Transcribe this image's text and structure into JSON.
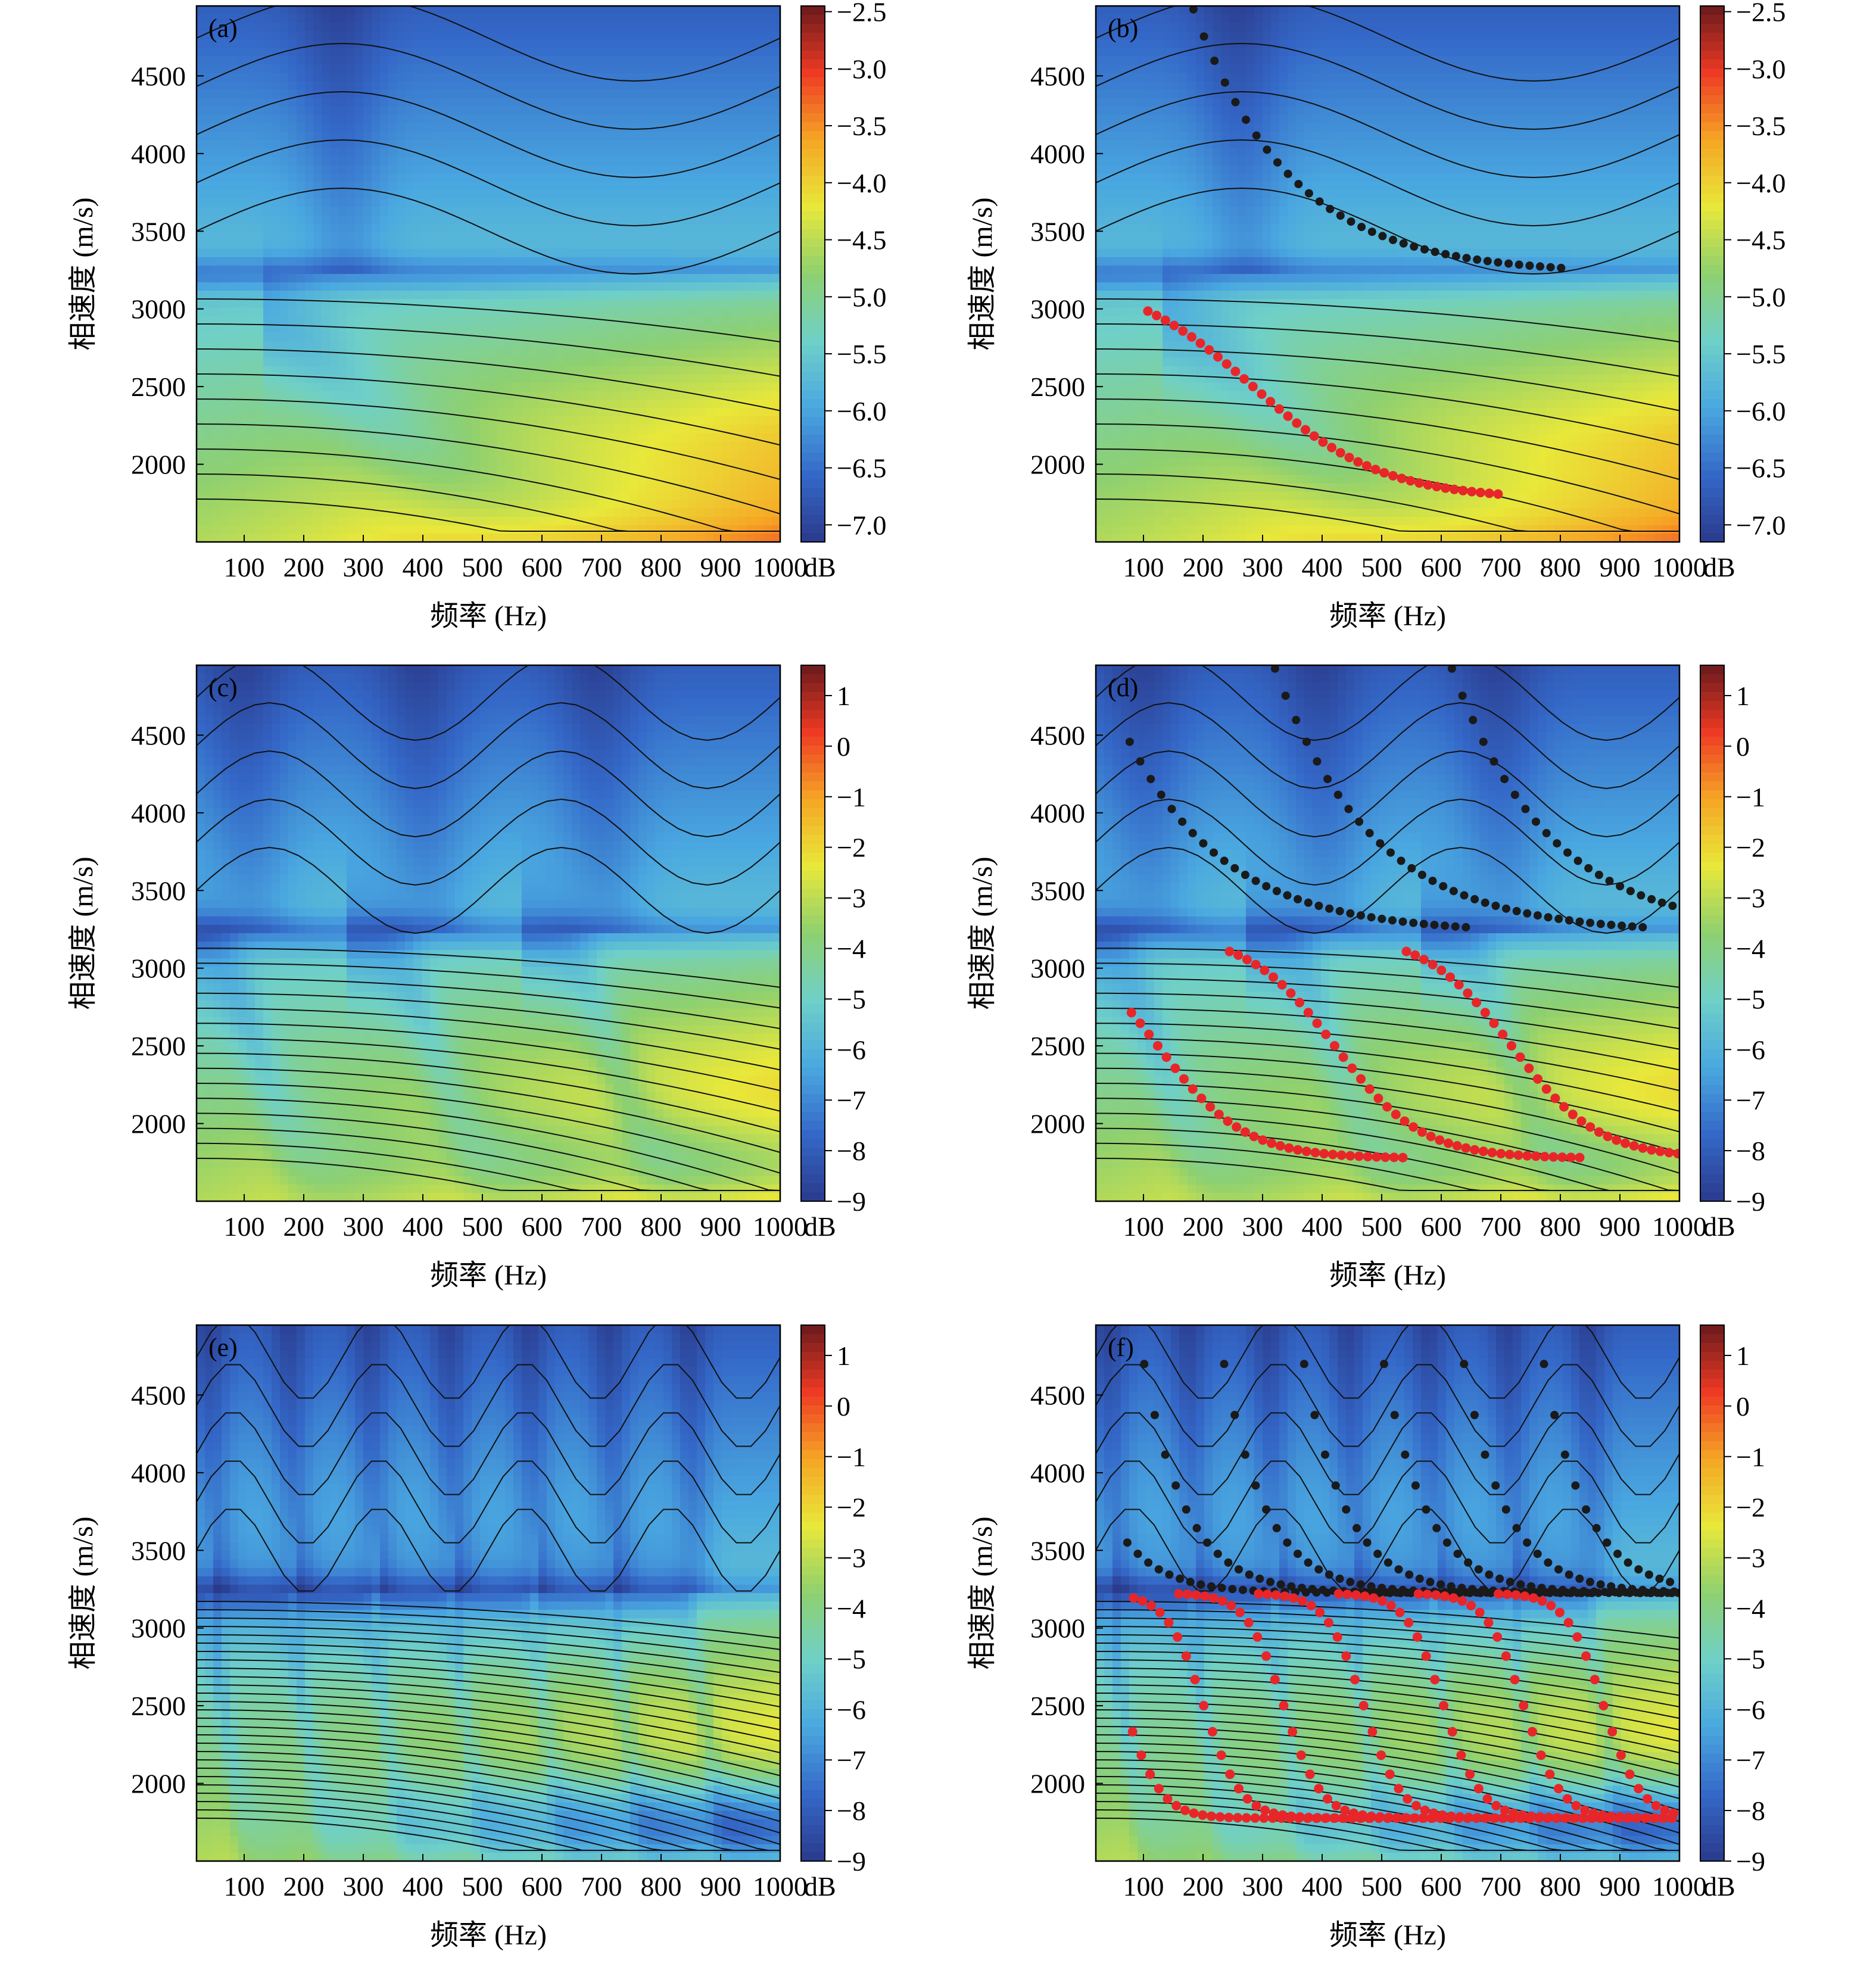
{
  "figure": {
    "panel_labels": [
      "(a)",
      "(b)",
      "(c)",
      "(d)",
      "(e)",
      "(f)"
    ],
    "xlabel": "频率 (Hz)",
    "ylabel": "相速度 (m/s)",
    "colorbar_unit": "dB",
    "colormap": [
      "#2a3a8c",
      "#3468c8",
      "#4aa8e0",
      "#6fd0c8",
      "#8ed070",
      "#e8e83a",
      "#f6a625",
      "#ee3a24",
      "#6a1a1c"
    ],
    "dispersion_colors": {
      "black_curve": "#1a1a1a",
      "red_curve": "#e8262a"
    }
  },
  "chart_data": [
    {
      "panel": "(a)",
      "type": "heatmap",
      "xlim": [
        20,
        1000
      ],
      "ylim": [
        1500,
        4950
      ],
      "xticks": [
        100,
        200,
        300,
        400,
        500,
        600,
        700,
        800,
        900,
        1000
      ],
      "yticks": [
        2000,
        2500,
        3000,
        3500,
        4000,
        4500
      ],
      "colorbar": {
        "min": -7.15,
        "max": -2.45,
        "ticks": [
          -2.5,
          -3.0,
          -3.5,
          -4.0,
          -4.5,
          -5.0,
          -5.5,
          -6.0,
          -6.5,
          -7.0
        ],
        "label": "dB"
      },
      "modes": 1,
      "dispersion_points": false
    },
    {
      "panel": "(b)",
      "type": "heatmap",
      "xlim": [
        20,
        1000
      ],
      "ylim": [
        1500,
        4950
      ],
      "xticks": [
        100,
        200,
        300,
        400,
        500,
        600,
        700,
        800,
        900,
        1000
      ],
      "yticks": [
        2000,
        2500,
        3000,
        3500,
        4000,
        4500
      ],
      "colorbar": {
        "min": -7.15,
        "max": -2.45,
        "ticks": [
          -2.5,
          -3.0,
          -3.5,
          -4.0,
          -4.5,
          -5.0,
          -5.5,
          -6.0,
          -6.5,
          -7.0
        ],
        "label": "dB"
      },
      "modes": 1,
      "dispersion_points": true
    },
    {
      "panel": "(c)",
      "type": "heatmap",
      "xlim": [
        20,
        1000
      ],
      "ylim": [
        1500,
        4950
      ],
      "xticks": [
        100,
        200,
        300,
        400,
        500,
        600,
        700,
        800,
        900,
        1000
      ],
      "yticks": [
        2000,
        2500,
        3000,
        3500,
        4000,
        4500
      ],
      "colorbar": {
        "min": -9,
        "max": 1.6,
        "ticks": [
          1,
          0,
          -1,
          -2,
          -3,
          -4,
          -5,
          -6,
          -7,
          -8,
          -9
        ],
        "label": "dB"
      },
      "modes": 3,
      "dispersion_points": false
    },
    {
      "panel": "(d)",
      "type": "heatmap",
      "xlim": [
        20,
        1000
      ],
      "ylim": [
        1500,
        4950
      ],
      "xticks": [
        100,
        200,
        300,
        400,
        500,
        600,
        700,
        800,
        900,
        1000
      ],
      "yticks": [
        2000,
        2500,
        3000,
        3500,
        4000,
        4500
      ],
      "colorbar": {
        "min": -9,
        "max": 1.6,
        "ticks": [
          1,
          0,
          -1,
          -2,
          -3,
          -4,
          -5,
          -6,
          -7,
          -8,
          -9
        ],
        "label": "dB"
      },
      "modes": 3,
      "dispersion_points": true
    },
    {
      "panel": "(e)",
      "type": "heatmap",
      "xlim": [
        20,
        1000
      ],
      "ylim": [
        1500,
        4950
      ],
      "xticks": [
        100,
        200,
        300,
        400,
        500,
        600,
        700,
        800,
        900,
        1000
      ],
      "yticks": [
        2000,
        2500,
        3000,
        3500,
        4000,
        4500
      ],
      "colorbar": {
        "min": -9,
        "max": 1.6,
        "ticks": [
          1,
          0,
          -1,
          -2,
          -3,
          -4,
          -5,
          -6,
          -7,
          -8,
          -9
        ],
        "label": "dB"
      },
      "modes": 7,
      "dispersion_points": false
    },
    {
      "panel": "(f)",
      "type": "heatmap",
      "xlim": [
        20,
        1000
      ],
      "ylim": [
        1500,
        4950
      ],
      "xticks": [
        100,
        200,
        300,
        400,
        500,
        600,
        700,
        800,
        900,
        1000
      ],
      "yticks": [
        2000,
        2500,
        3000,
        3500,
        4000,
        4500
      ],
      "colorbar": {
        "min": -9,
        "max": 1.6,
        "ticks": [
          1,
          0,
          -1,
          -2,
          -3,
          -4,
          -5,
          -6,
          -7,
          -8,
          -9
        ],
        "label": "dB"
      },
      "modes": 7,
      "dispersion_points": true
    }
  ]
}
